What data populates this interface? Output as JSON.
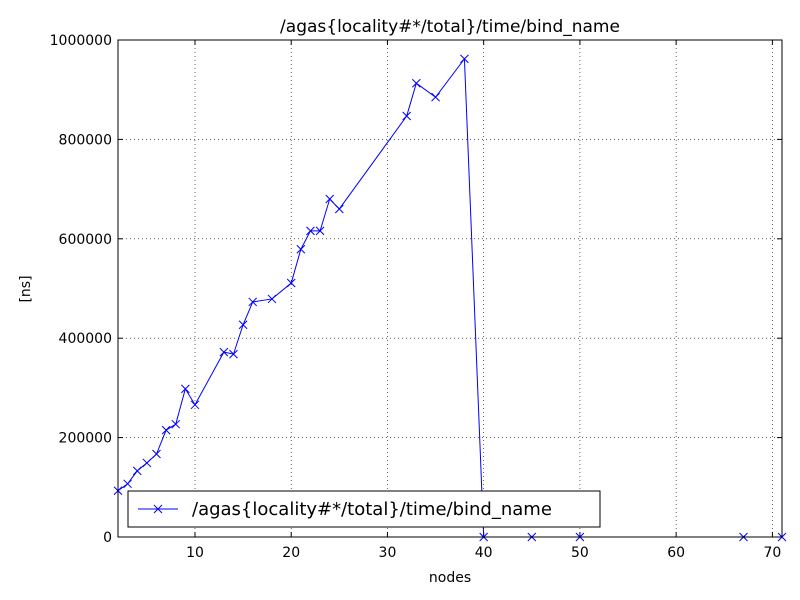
{
  "chart_data": {
    "type": "line",
    "title": "/agas{locality#*/total}/time/bind_name",
    "x_label": "nodes",
    "y_label": "[ns]",
    "x": [
      2,
      3,
      4,
      5,
      6,
      7,
      8,
      9,
      10,
      13,
      14,
      15,
      16,
      18,
      20,
      21,
      22,
      23,
      24,
      25,
      32,
      33,
      35,
      38,
      40,
      45,
      50,
      67,
      71
    ],
    "series": [
      {
        "name": "/agas{locality#*/total}/time/bind_name",
        "color": "#0000ff",
        "values": [
          93000,
          107000,
          133000,
          149000,
          167000,
          215000,
          227000,
          298000,
          266000,
          372000,
          368000,
          427000,
          473000,
          479000,
          511000,
          579000,
          616000,
          616000,
          680000,
          660000,
          847000,
          913000,
          885000,
          962000,
          0,
          0,
          0,
          0,
          0
        ]
      }
    ],
    "xlim": [
      2,
      71
    ],
    "xticks": [
      10,
      20,
      30,
      40,
      50,
      60,
      70
    ],
    "ylim": [
      0,
      1000000
    ],
    "yticks": [
      0,
      200000,
      400000,
      600000,
      800000,
      1000000
    ],
    "grid": true,
    "legend": "lower left"
  }
}
